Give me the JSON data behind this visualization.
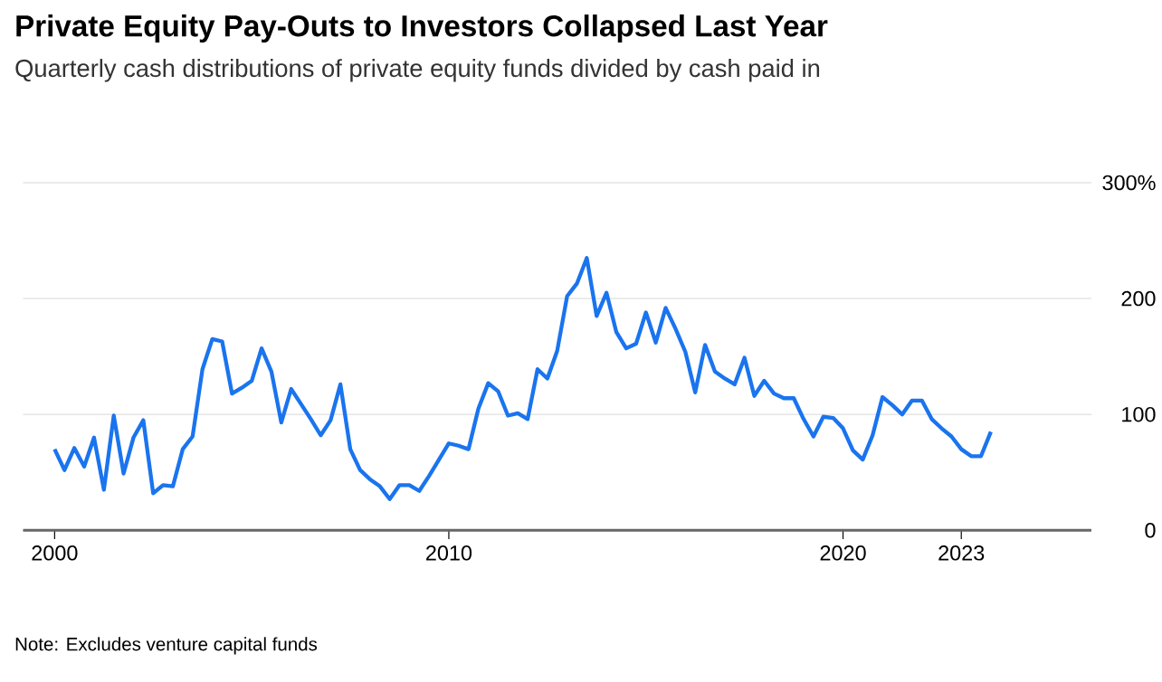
{
  "chart_data": {
    "type": "line",
    "title": "Private Equity Pay-Outs to Investors Collapsed Last Year",
    "subtitle": "Quarterly cash distributions of private equity funds divided by cash paid in",
    "annotations": [
      "Note: Excludes venture capital funds"
    ],
    "x": [
      2000,
      2000.25,
      2000.5,
      2000.75,
      2001,
      2001.25,
      2001.5,
      2001.75,
      2002,
      2002.25,
      2002.5,
      2002.75,
      2003,
      2003.25,
      2003.5,
      2003.75,
      2004,
      2004.25,
      2004.5,
      2004.75,
      2005,
      2005.25,
      2005.5,
      2005.75,
      2006,
      2006.25,
      2006.5,
      2006.75,
      2007,
      2007.25,
      2007.5,
      2007.75,
      2008,
      2008.25,
      2008.5,
      2008.75,
      2009,
      2009.25,
      2009.5,
      2009.75,
      2010,
      2010.25,
      2010.5,
      2010.75,
      2011,
      2011.25,
      2011.5,
      2011.75,
      2012,
      2012.25,
      2012.5,
      2012.75,
      2013,
      2013.25,
      2013.5,
      2013.75,
      2014,
      2014.25,
      2014.5,
      2014.75,
      2015,
      2015.25,
      2015.5,
      2015.75,
      2016,
      2016.25,
      2016.5,
      2016.75,
      2017,
      2017.25,
      2017.5,
      2017.75,
      2018,
      2018.25,
      2018.5,
      2018.75,
      2019,
      2019.25,
      2019.5,
      2019.75,
      2020,
      2020.25,
      2020.5,
      2020.75,
      2021,
      2021.25,
      2021.5,
      2021.75,
      2022,
      2022.25,
      2022.5,
      2022.75,
      2023,
      2023.25,
      2023.5,
      2023.75
    ],
    "values": [
      70,
      52,
      71,
      55,
      80,
      35,
      99,
      49,
      80,
      95,
      32,
      39,
      38,
      70,
      81,
      139,
      165,
      163,
      118,
      123,
      129,
      157,
      137,
      93,
      122,
      109,
      96,
      82,
      95,
      126,
      70,
      52,
      44,
      38,
      27,
      39,
      39,
      34,
      47,
      61,
      75,
      73,
      70,
      105,
      127,
      120,
      99,
      101,
      96,
      139,
      131,
      155,
      202,
      213,
      235,
      185,
      205,
      171,
      157,
      161,
      188,
      162,
      192,
      174,
      154,
      119,
      160,
      137,
      131,
      126,
      149,
      116,
      129,
      118,
      114,
      114,
      96,
      81,
      98,
      97,
      88,
      69,
      61,
      82,
      115,
      108,
      100,
      112,
      112,
      96,
      88,
      81,
      70,
      64,
      64,
      85
    ],
    "color": "#1a74ee",
    "line_style": "solid",
    "grid": "y",
    "xlim": [
      1999.2,
      2026.3
    ],
    "ylim": [
      0,
      300
    ],
    "xticks": [
      2000,
      2010,
      2020,
      2023
    ],
    "yticks": [
      0,
      100,
      200,
      {
        "value": 300,
        "label": "300%"
      }
    ]
  }
}
